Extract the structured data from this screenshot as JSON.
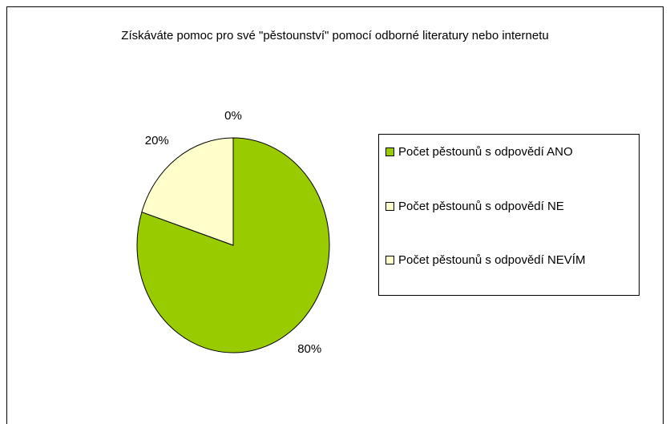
{
  "chart_data": {
    "type": "pie",
    "title": "Získáváte pomoc pro své \"pěstounství\" pomocí odborné literatury nebo internetu",
    "categories": [
      "Počet pěstounů s odpovědí ANO",
      "Počet pěstounů s odpovědí NE",
      "Počet pěstounů s odpovědí NEVÍM"
    ],
    "values": [
      80,
      20,
      0
    ],
    "value_labels": [
      "80%",
      "20%",
      "0%"
    ],
    "colors": [
      "#99cc00",
      "#ffffcc",
      "#ffffcc"
    ],
    "legend": "right"
  }
}
